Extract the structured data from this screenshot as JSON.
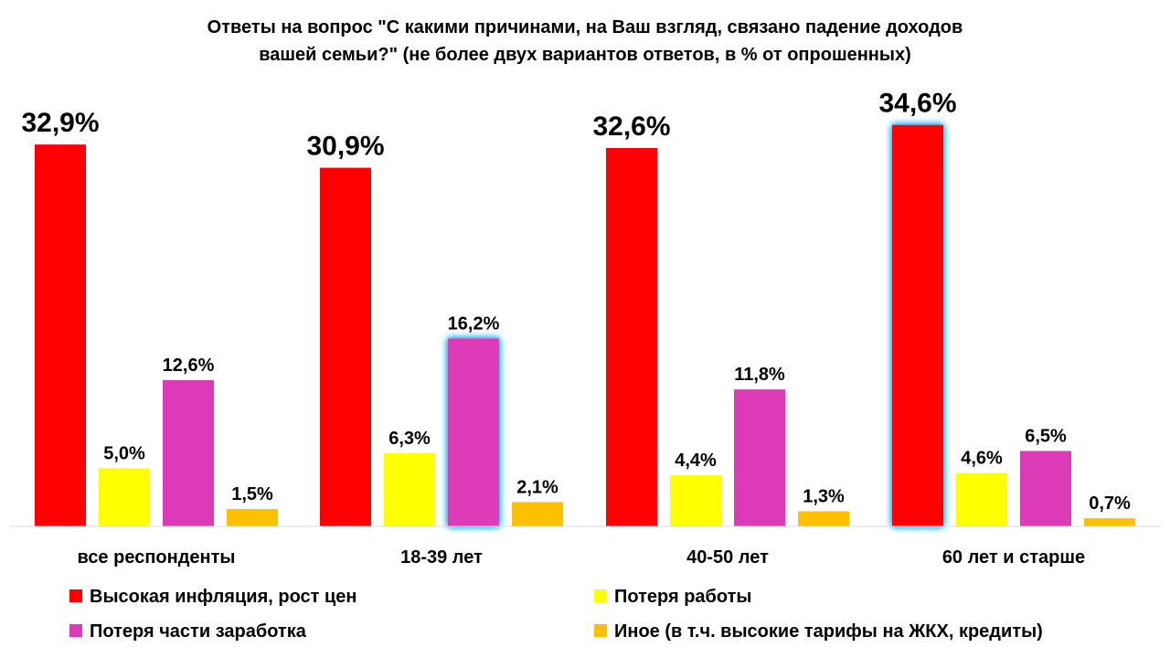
{
  "chart_data": {
    "type": "bar",
    "title": "Ответы на вопрос \"С какими причинами, на Ваш взгляд, связано падение доходов вашей семьи?\" (не более двух вариантов ответов, в % от опрошенных)",
    "title_lines": [
      "Ответы на вопрос \"С какими причинами, на Ваш взгляд, связано падение доходов",
      "вашей семьи?\" (не более двух вариантов ответов, в % от опрошенных)"
    ],
    "categories": [
      "все респонденты",
      "18-39 лет",
      "40-50 лет",
      "60 лет и старше"
    ],
    "series": [
      {
        "name": "Высокая инфляция, рост цен",
        "color": "#ff0000",
        "values": [
          32.9,
          30.9,
          32.6,
          34.6
        ],
        "labels": [
          "32,9%",
          "30,9%",
          "32,6%",
          "34,6%"
        ],
        "highlight": [
          false,
          false,
          false,
          true
        ]
      },
      {
        "name": "Потеря работы",
        "color": "#ffff00",
        "values": [
          5.0,
          6.3,
          4.4,
          4.6
        ],
        "labels": [
          "5,0%",
          "6,3%",
          "4,4%",
          "4,6%"
        ],
        "highlight": [
          false,
          false,
          false,
          false
        ]
      },
      {
        "name": "Потеря части заработка",
        "color": "#dd3ab8",
        "values": [
          12.6,
          16.2,
          11.8,
          6.5
        ],
        "labels": [
          "12,6%",
          "16,2%",
          "11,8%",
          "6,5%"
        ],
        "highlight": [
          false,
          true,
          false,
          false
        ]
      },
      {
        "name": "Иное (в т.ч. высокие тарифы на ЖКХ, кредиты)",
        "color": "#ffc000",
        "values": [
          1.5,
          2.1,
          1.3,
          0.7
        ],
        "labels": [
          "1,5%",
          "2,1%",
          "1,3%",
          "0,7%"
        ],
        "highlight": [
          false,
          false,
          false,
          false
        ]
      }
    ],
    "ylim": [
      0,
      36
    ],
    "grid": false,
    "legend_position": "bottom",
    "highlight_color": "#00b0f0"
  }
}
